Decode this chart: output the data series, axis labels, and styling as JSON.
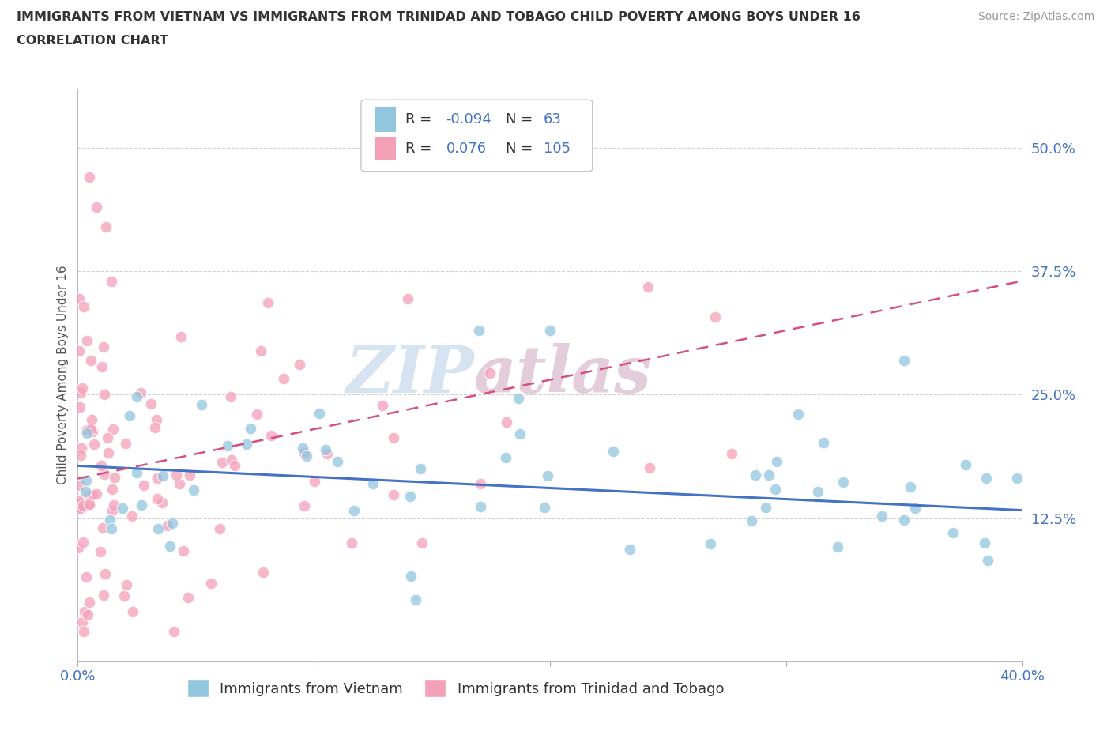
{
  "title_line1": "IMMIGRANTS FROM VIETNAM VS IMMIGRANTS FROM TRINIDAD AND TOBAGO CHILD POVERTY AMONG BOYS UNDER 16",
  "title_line2": "CORRELATION CHART",
  "source_text": "Source: ZipAtlas.com",
  "ylabel": "Child Poverty Among Boys Under 16",
  "xlim": [
    0.0,
    0.4
  ],
  "ylim": [
    -0.02,
    0.56
  ],
  "yticks": [
    0.0,
    0.125,
    0.25,
    0.375,
    0.5
  ],
  "ytick_labels": [
    "",
    "12.5%",
    "25.0%",
    "37.5%",
    "50.0%"
  ],
  "xtick_positions": [
    0.0,
    0.1,
    0.2,
    0.3,
    0.4
  ],
  "xtick_labels": [
    "0.0%",
    "",
    "",
    "",
    "40.0%"
  ],
  "vietnam_color": "#92c5de",
  "vietnam_line_color": "#4472c4",
  "tt_color": "#f4a0b8",
  "tt_line_color": "#d45080",
  "watermark_color_zip": "#c5d8ea",
  "watermark_color_atlas": "#d8b8cc",
  "background_color": "#ffffff",
  "grid_color": "#d0d0d0",
  "title_color": "#333333",
  "tick_color": "#4472c4",
  "source_color": "#999999"
}
